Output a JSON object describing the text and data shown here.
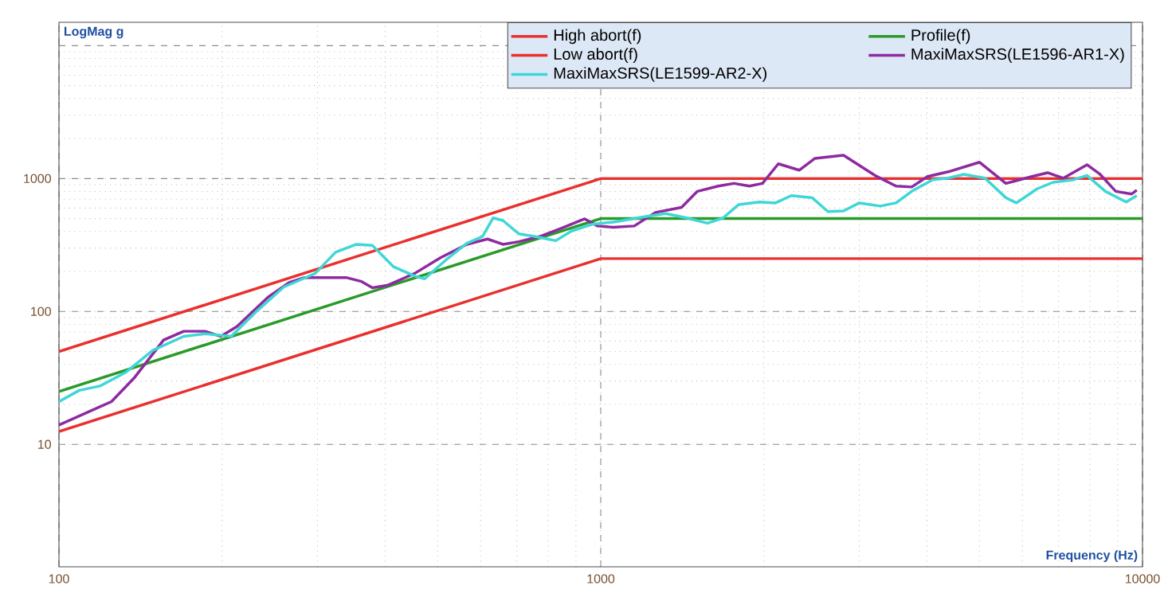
{
  "chart_data": {
    "type": "line",
    "xlabel": "Frequency (Hz)",
    "ylabel": "LogMag g",
    "log": "xy",
    "grid": true,
    "legend": "top right",
    "marker": "none",
    "line_style": "solid",
    "xlim": [
      100,
      10000
    ],
    "ylim": [
      1.2,
      15000
    ],
    "xticks": [
      100,
      1000,
      10000
    ],
    "yticks": [
      10,
      100,
      1000,
      {
        "value": 10000,
        "label": null
      }
    ],
    "series": [
      {
        "name": "High abort(f)",
        "color": "#e8312f",
        "x": [
          100,
          1000,
          10000
        ],
        "values": [
          50,
          1000,
          1000
        ]
      },
      {
        "name": "Profile(f)",
        "color": "#2a9a2a",
        "x": [
          100,
          1000,
          10000
        ],
        "values": [
          25,
          500,
          500
        ]
      },
      {
        "name": "Low abort(f)",
        "color": "#e8312f",
        "x": [
          100,
          1000,
          10000
        ],
        "values": [
          12.5,
          250,
          250
        ]
      },
      {
        "name": "MaxiMaxSRS(LE1596-AR1-X)",
        "color": "#8e2aa0",
        "x": [
          100,
          125,
          138,
          156,
          170,
          186,
          199,
          213,
          243,
          266,
          284,
          339,
          362,
          379,
          405,
          453,
          506,
          566,
          618,
          660,
          706,
          772,
          845,
          934,
          987,
          1055,
          1153,
          1262,
          1410,
          1508,
          1648,
          1762,
          1881,
          1989,
          2127,
          2324,
          2485,
          2806,
          3206,
          3508,
          3750,
          4010,
          4379,
          5003,
          5594,
          6250,
          6680,
          7145,
          7900,
          8350,
          8925,
          9550,
          9760
        ],
        "values": [
          14,
          21,
          32,
          61,
          71,
          71,
          65,
          77,
          128,
          165,
          180,
          180,
          168,
          151,
          158,
          193,
          254,
          320,
          351,
          320,
          335,
          367,
          422,
          498,
          440,
          430,
          440,
          556,
          608,
          802,
          879,
          920,
          879,
          920,
          1292,
          1157,
          1419,
          1500,
          1057,
          879,
          865,
          1037,
          1125,
          1328,
          920,
          1037,
          1107,
          1008,
          1271,
          1077,
          802,
          766,
          818
        ]
      },
      {
        "name": "MaxiMaxSRS(LE1599-AR2-X)",
        "color": "#3fd6d6",
        "x": [
          100,
          109,
          119,
          133,
          149,
          170,
          186,
          208,
          232,
          260,
          297,
          324,
          354,
          379,
          414,
          453,
          473,
          517,
          566,
          605,
          633,
          660,
          706,
          755,
          826,
          883,
          966,
          1055,
          1205,
          1318,
          1440,
          1574,
          1682,
          1798,
          1966,
          2102,
          2248,
          2456,
          2626,
          2806,
          3000,
          3280,
          3508,
          3750,
          4100,
          4379,
          4680,
          5118,
          5594,
          5850,
          6397,
          6840,
          7470,
          7900,
          8540,
          9330,
          9760
        ],
        "values": [
          21,
          25.5,
          27.5,
          35,
          51,
          65,
          68,
          65,
          101,
          153,
          193,
          279,
          320,
          314,
          218,
          185,
          176,
          243,
          326,
          367,
          506,
          484,
          384,
          367,
          341,
          403,
          454,
          471,
          516,
          546,
          506,
          462,
          506,
          638,
          667,
          656,
          745,
          718,
          565,
          571,
          656,
          621,
          656,
          802,
          982,
          1008,
          1077,
          1008,
          718,
          656,
          840,
          938,
          982,
          1057,
          802,
          667,
          745
        ]
      }
    ]
  }
}
